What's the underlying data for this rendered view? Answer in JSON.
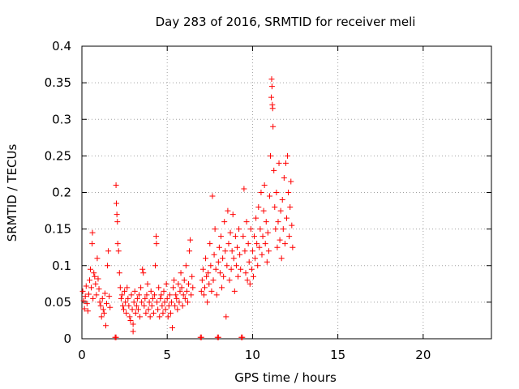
{
  "chart_data": {
    "type": "scatter",
    "title": "Day 283 of 2016, SRMTID for receiver meli",
    "xlabel": "GPS time / hours",
    "ylabel": "SRMTID / TECUs",
    "xlim": [
      0,
      24
    ],
    "ylim": [
      0,
      0.4
    ],
    "grid": true,
    "marker": "+",
    "color": "#ff0000",
    "x_ticks": [
      {
        "value": 0,
        "label": "0"
      },
      {
        "value": 5,
        "label": "5"
      },
      {
        "value": 10,
        "label": "10"
      },
      {
        "value": 15,
        "label": "15"
      },
      {
        "value": 20,
        "label": "20"
      }
    ],
    "y_ticks": [
      {
        "value": 0,
        "label": "0"
      },
      {
        "value": 0.05,
        "label": "0.05"
      },
      {
        "value": 0.1,
        "label": "0.1"
      },
      {
        "value": 0.15,
        "label": "0.15"
      },
      {
        "value": 0.2,
        "label": "0.2"
      },
      {
        "value": 0.25,
        "label": "0.25"
      },
      {
        "value": 0.3,
        "label": "0.3"
      },
      {
        "value": 0.35,
        "label": "0.35"
      },
      {
        "value": 0.4,
        "label": "0.4"
      }
    ],
    "points": [
      [
        0.05,
        0.065
      ],
      [
        0.1,
        0.052
      ],
      [
        0.15,
        0.041
      ],
      [
        0.2,
        0.058
      ],
      [
        0.25,
        0.072
      ],
      [
        0.3,
        0.048
      ],
      [
        0.35,
        0.038
      ],
      [
        0.4,
        0.061
      ],
      [
        0.45,
        0.08
      ],
      [
        0.5,
        0.095
      ],
      [
        0.55,
        0.07
      ],
      [
        0.6,
        0.13
      ],
      [
        0.62,
        0.145
      ],
      [
        0.65,
        0.055
      ],
      [
        0.7,
        0.09
      ],
      [
        0.75,
        0.085
      ],
      [
        0.8,
        0.075
      ],
      [
        0.85,
        0.06
      ],
      [
        0.9,
        0.11
      ],
      [
        0.95,
        0.082
      ],
      [
        1.0,
        0.068
      ],
      [
        1.05,
        0.05
      ],
      [
        1.1,
        0.045
      ],
      [
        1.15,
        0.03
      ],
      [
        1.2,
        0.055
      ],
      [
        1.25,
        0.04
      ],
      [
        1.3,
        0.035
      ],
      [
        1.35,
        0.062
      ],
      [
        1.4,
        0.018
      ],
      [
        1.45,
        0.048
      ],
      [
        1.5,
        0.1
      ],
      [
        1.55,
        0.12
      ],
      [
        1.6,
        0.058
      ],
      [
        1.65,
        0.043
      ],
      [
        1.95,
        0.002
      ],
      [
        2.0,
        0.002
      ],
      [
        2.0,
        0.21
      ],
      [
        2.02,
        0.185
      ],
      [
        2.05,
        0.17
      ],
      [
        2.08,
        0.16
      ],
      [
        2.1,
        0.13
      ],
      [
        2.15,
        0.12
      ],
      [
        2.2,
        0.09
      ],
      [
        2.25,
        0.07
      ],
      [
        2.3,
        0.055
      ],
      [
        2.35,
        0.06
      ],
      [
        2.4,
        0.045
      ],
      [
        2.45,
        0.04
      ],
      [
        2.5,
        0.065
      ],
      [
        2.55,
        0.05
      ],
      [
        2.6,
        0.035
      ],
      [
        2.65,
        0.07
      ],
      [
        2.7,
        0.055
      ],
      [
        2.75,
        0.045
      ],
      [
        2.8,
        0.03
      ],
      [
        2.85,
        0.025
      ],
      [
        2.9,
        0.06
      ],
      [
        2.95,
        0.04
      ],
      [
        3.0,
        0.02
      ],
      [
        3.0,
        0.01
      ],
      [
        3.05,
        0.05
      ],
      [
        3.1,
        0.065
      ],
      [
        3.15,
        0.035
      ],
      [
        3.2,
        0.045
      ],
      [
        3.25,
        0.055
      ],
      [
        3.3,
        0.04
      ],
      [
        3.35,
        0.06
      ],
      [
        3.4,
        0.03
      ],
      [
        3.45,
        0.07
      ],
      [
        3.5,
        0.05
      ],
      [
        3.55,
        0.095
      ],
      [
        3.6,
        0.09
      ],
      [
        3.65,
        0.045
      ],
      [
        3.7,
        0.055
      ],
      [
        3.75,
        0.035
      ],
      [
        3.8,
        0.06
      ],
      [
        3.85,
        0.075
      ],
      [
        3.9,
        0.04
      ],
      [
        3.95,
        0.05
      ],
      [
        4.0,
        0.03
      ],
      [
        4.05,
        0.065
      ],
      [
        4.1,
        0.045
      ],
      [
        4.15,
        0.055
      ],
      [
        4.2,
        0.035
      ],
      [
        4.25,
        0.06
      ],
      [
        4.3,
        0.1
      ],
      [
        4.35,
        0.14
      ],
      [
        4.37,
        0.13
      ],
      [
        4.4,
        0.05
      ],
      [
        4.45,
        0.04
      ],
      [
        4.5,
        0.07
      ],
      [
        4.55,
        0.03
      ],
      [
        4.6,
        0.055
      ],
      [
        4.65,
        0.06
      ],
      [
        4.7,
        0.045
      ],
      [
        4.75,
        0.035
      ],
      [
        4.8,
        0.065
      ],
      [
        4.85,
        0.05
      ],
      [
        4.9,
        0.04
      ],
      [
        4.95,
        0.075
      ],
      [
        5.0,
        0.055
      ],
      [
        5.05,
        0.03
      ],
      [
        5.1,
        0.045
      ],
      [
        5.15,
        0.06
      ],
      [
        5.2,
        0.035
      ],
      [
        5.25,
        0.05
      ],
      [
        5.3,
        0.015
      ],
      [
        5.35,
        0.07
      ],
      [
        5.4,
        0.08
      ],
      [
        5.45,
        0.045
      ],
      [
        5.5,
        0.06
      ],
      [
        5.55,
        0.055
      ],
      [
        5.6,
        0.04
      ],
      [
        5.65,
        0.075
      ],
      [
        5.7,
        0.05
      ],
      [
        5.75,
        0.065
      ],
      [
        5.8,
        0.09
      ],
      [
        5.85,
        0.07
      ],
      [
        5.9,
        0.045
      ],
      [
        5.95,
        0.06
      ],
      [
        6.0,
        0.08
      ],
      [
        6.05,
        0.055
      ],
      [
        6.1,
        0.1
      ],
      [
        6.15,
        0.065
      ],
      [
        6.2,
        0.05
      ],
      [
        6.25,
        0.075
      ],
      [
        6.3,
        0.12
      ],
      [
        6.35,
        0.135
      ],
      [
        6.4,
        0.06
      ],
      [
        6.45,
        0.085
      ],
      [
        6.5,
        0.07
      ],
      [
        6.95,
        0.002
      ],
      [
        7.0,
        0.002
      ],
      [
        7.0,
        0.065
      ],
      [
        7.05,
        0.08
      ],
      [
        7.1,
        0.095
      ],
      [
        7.15,
        0.06
      ],
      [
        7.2,
        0.07
      ],
      [
        7.25,
        0.11
      ],
      [
        7.3,
        0.085
      ],
      [
        7.35,
        0.05
      ],
      [
        7.4,
        0.09
      ],
      [
        7.45,
        0.075
      ],
      [
        7.5,
        0.13
      ],
      [
        7.55,
        0.1
      ],
      [
        7.6,
        0.065
      ],
      [
        7.65,
        0.195
      ],
      [
        7.7,
        0.08
      ],
      [
        7.75,
        0.115
      ],
      [
        7.8,
        0.15
      ],
      [
        7.85,
        0.095
      ],
      [
        7.9,
        0.06
      ],
      [
        7.95,
        0.002
      ],
      [
        8.0,
        0.002
      ],
      [
        8.0,
        0.105
      ],
      [
        8.05,
        0.125
      ],
      [
        8.1,
        0.09
      ],
      [
        8.15,
        0.14
      ],
      [
        8.2,
        0.07
      ],
      [
        8.25,
        0.11
      ],
      [
        8.3,
        0.085
      ],
      [
        8.35,
        0.16
      ],
      [
        8.4,
        0.12
      ],
      [
        8.45,
        0.03
      ],
      [
        8.5,
        0.1
      ],
      [
        8.55,
        0.175
      ],
      [
        8.6,
        0.13
      ],
      [
        8.65,
        0.08
      ],
      [
        8.7,
        0.145
      ],
      [
        8.75,
        0.095
      ],
      [
        8.8,
        0.12
      ],
      [
        8.85,
        0.17
      ],
      [
        8.9,
        0.11
      ],
      [
        8.95,
        0.065
      ],
      [
        9.0,
        0.14
      ],
      [
        9.05,
        0.1
      ],
      [
        9.1,
        0.125
      ],
      [
        9.15,
        0.085
      ],
      [
        9.2,
        0.15
      ],
      [
        9.25,
        0.115
      ],
      [
        9.3,
        0.095
      ],
      [
        9.35,
        0.002
      ],
      [
        9.4,
        0.002
      ],
      [
        9.45,
        0.14
      ],
      [
        9.5,
        0.205
      ],
      [
        9.55,
        0.12
      ],
      [
        9.6,
        0.09
      ],
      [
        9.65,
        0.16
      ],
      [
        9.7,
        0.08
      ],
      [
        9.75,
        0.13
      ],
      [
        9.8,
        0.105
      ],
      [
        9.85,
        0.075
      ],
      [
        9.9,
        0.15
      ],
      [
        9.95,
        0.095
      ],
      [
        10.0,
        0.12
      ],
      [
        10.05,
        0.085
      ],
      [
        10.1,
        0.14
      ],
      [
        10.15,
        0.11
      ],
      [
        10.2,
        0.165
      ],
      [
        10.25,
        0.13
      ],
      [
        10.3,
        0.1
      ],
      [
        10.35,
        0.18
      ],
      [
        10.4,
        0.125
      ],
      [
        10.45,
        0.15
      ],
      [
        10.5,
        0.2
      ],
      [
        10.55,
        0.115
      ],
      [
        10.6,
        0.14
      ],
      [
        10.65,
        0.175
      ],
      [
        10.7,
        0.21
      ],
      [
        10.75,
        0.13
      ],
      [
        10.8,
        0.16
      ],
      [
        10.85,
        0.105
      ],
      [
        10.9,
        0.145
      ],
      [
        10.95,
        0.12
      ],
      [
        11.0,
        0.195
      ],
      [
        11.05,
        0.25
      ],
      [
        11.1,
        0.33
      ],
      [
        11.12,
        0.355
      ],
      [
        11.14,
        0.345
      ],
      [
        11.16,
        0.32
      ],
      [
        11.18,
        0.315
      ],
      [
        11.2,
        0.29
      ],
      [
        11.25,
        0.23
      ],
      [
        11.3,
        0.18
      ],
      [
        11.35,
        0.15
      ],
      [
        11.4,
        0.2
      ],
      [
        11.45,
        0.125
      ],
      [
        11.5,
        0.16
      ],
      [
        11.55,
        0.24
      ],
      [
        11.6,
        0.135
      ],
      [
        11.65,
        0.175
      ],
      [
        11.7,
        0.11
      ],
      [
        11.75,
        0.19
      ],
      [
        11.8,
        0.15
      ],
      [
        11.85,
        0.22
      ],
      [
        11.9,
        0.13
      ],
      [
        11.95,
        0.24
      ],
      [
        12.0,
        0.165
      ],
      [
        12.05,
        0.25
      ],
      [
        12.1,
        0.2
      ],
      [
        12.15,
        0.14
      ],
      [
        12.2,
        0.18
      ],
      [
        12.25,
        0.215
      ],
      [
        12.3,
        0.155
      ],
      [
        12.35,
        0.125
      ]
    ]
  }
}
